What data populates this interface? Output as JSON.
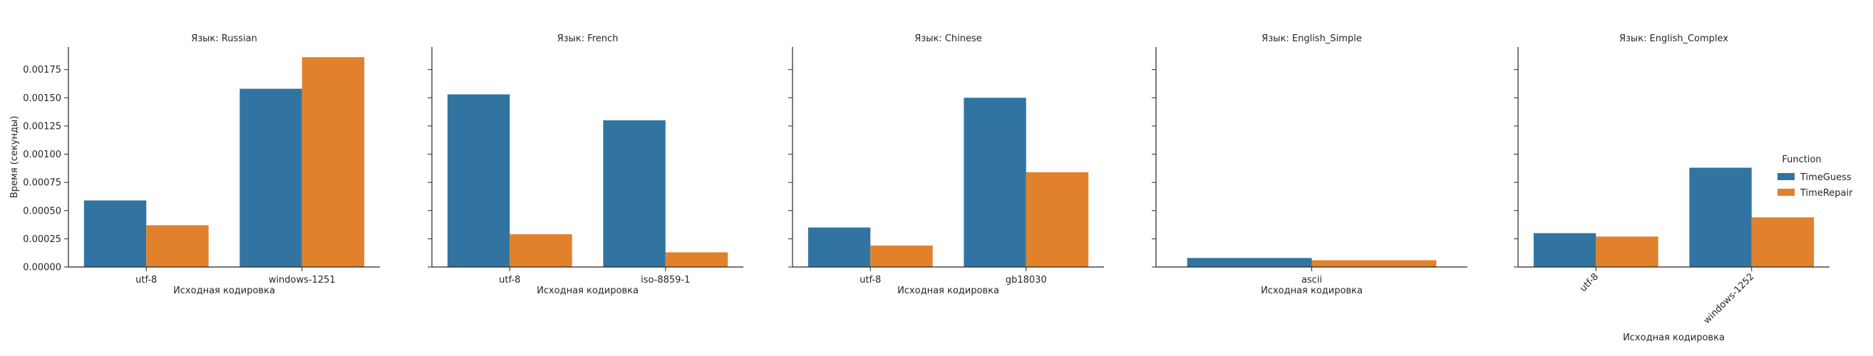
{
  "chart_data": {
    "type": "bar",
    "title": "",
    "ylabel": "Время (секунды)",
    "xlabel": "Исходная кодировка",
    "ylim": [
      0,
      0.00195
    ],
    "yticks": [
      0.0,
      0.00025,
      0.0005,
      0.00075,
      0.001,
      0.00125,
      0.0015,
      0.00175
    ],
    "ytick_labels": [
      "0.00000",
      "0.00025",
      "0.00050",
      "0.00075",
      "0.00100",
      "0.00125",
      "0.00150",
      "0.00175"
    ],
    "legend": {
      "title": "Function",
      "placement": "right",
      "entries": [
        "TimeGuess",
        "TimeRepair"
      ]
    },
    "colors": {
      "TimeGuess": "#3274a1",
      "TimeRepair": "#e1812c"
    },
    "panels": [
      {
        "title": "Язык: Russian",
        "categories": [
          "utf-8",
          "windows-1251"
        ],
        "tick_rotation": 0,
        "series": [
          {
            "name": "TimeGuess",
            "values": [
              0.00059,
              0.00158
            ]
          },
          {
            "name": "TimeRepair",
            "values": [
              0.00037,
              0.00186
            ]
          }
        ]
      },
      {
        "title": "Язык: French",
        "categories": [
          "utf-8",
          "iso-8859-1"
        ],
        "tick_rotation": 0,
        "series": [
          {
            "name": "TimeGuess",
            "values": [
              0.00153,
              0.0013
            ]
          },
          {
            "name": "TimeRepair",
            "values": [
              0.00029,
              0.00013
            ]
          }
        ]
      },
      {
        "title": "Язык: Chinese",
        "categories": [
          "utf-8",
          "gb18030"
        ],
        "tick_rotation": 0,
        "series": [
          {
            "name": "TimeGuess",
            "values": [
              0.00035,
              0.0015
            ]
          },
          {
            "name": "TimeRepair",
            "values": [
              0.00019,
              0.00084
            ]
          }
        ]
      },
      {
        "title": "Язык: English_Simple",
        "categories": [
          "ascii"
        ],
        "tick_rotation": 0,
        "series": [
          {
            "name": "TimeGuess",
            "values": [
              8e-05
            ]
          },
          {
            "name": "TimeRepair",
            "values": [
              6e-05
            ]
          }
        ]
      },
      {
        "title": "Язык: English_Complex",
        "categories": [
          "utf-8",
          "windows-1252"
        ],
        "tick_rotation": -45,
        "series": [
          {
            "name": "TimeGuess",
            "values": [
              0.0003,
              0.00088
            ]
          },
          {
            "name": "TimeRepair",
            "values": [
              0.00027,
              0.00044
            ]
          }
        ]
      }
    ]
  }
}
